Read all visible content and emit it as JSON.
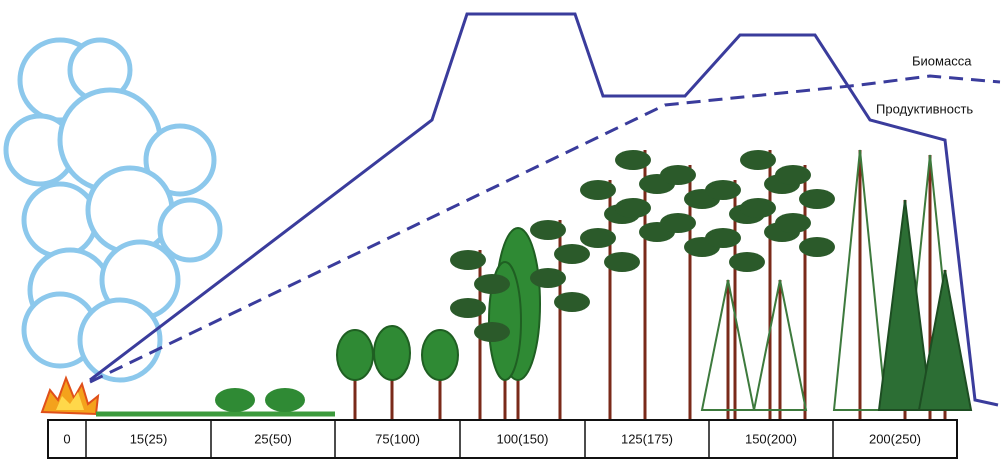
{
  "labels": {
    "biomass": "Биомасса",
    "productivity": "Продуктивность"
  },
  "stages": [
    "0",
    "15(25)",
    "25(50)",
    "75(100)",
    "100(150)",
    "125(175)",
    "150(200)",
    "200(250)"
  ]
}
